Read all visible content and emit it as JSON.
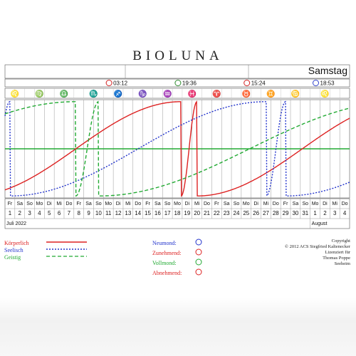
{
  "app_title": "BIOLUNA",
  "weekday": "Samstag",
  "moon_events": [
    {
      "phase": "Abnehmend",
      "time": "03:12",
      "day_index": 11,
      "color": "#d22222"
    },
    {
      "phase": "Neumond",
      "time": "19:36",
      "day_index": 18,
      "color": "#2e8b2e"
    },
    {
      "phase": "Zunehmend",
      "time": "15:24",
      "day_index": 25,
      "color": "#d22222"
    },
    {
      "phase": "Vollmond",
      "time": "18:53",
      "day_index": 32,
      "color": "#3344cc"
    }
  ],
  "zodiac": [
    {
      "glyph": "♌",
      "day_index": 1,
      "color": "#cc2222"
    },
    {
      "glyph": "♍",
      "day_index": 3.5,
      "color": "#2e8b2e"
    },
    {
      "glyph": "♎",
      "day_index": 6,
      "color": "#b8860b"
    },
    {
      "glyph": "♏",
      "day_index": 9,
      "color": "#3344cc"
    },
    {
      "glyph": "♐",
      "day_index": 11.5,
      "color": "#cc2222"
    },
    {
      "glyph": "♑",
      "day_index": 14,
      "color": "#2e8b2e"
    },
    {
      "glyph": "♒",
      "day_index": 16.5,
      "color": "#b8860b"
    },
    {
      "glyph": "♓",
      "day_index": 19,
      "color": "#3344cc"
    },
    {
      "glyph": "♈",
      "day_index": 21.5,
      "color": "#cc2222"
    },
    {
      "glyph": "♉",
      "day_index": 24.5,
      "color": "#2e8b2e"
    },
    {
      "glyph": "♊",
      "day_index": 27,
      "color": "#b8860b"
    },
    {
      "glyph": "♋",
      "day_index": 29.5,
      "color": "#3344cc"
    },
    {
      "glyph": "♌",
      "day_index": 32.5,
      "color": "#cc2222"
    }
  ],
  "months": [
    "Juli 2022",
    "August"
  ],
  "legend": {
    "koerperlich": {
      "label": "Körperlich",
      "color": "#dd2222"
    },
    "seelisch": {
      "label": "Seelisch",
      "color": "#2233cc"
    },
    "geistig": {
      "label": "Geistig",
      "color": "#22aa33"
    }
  },
  "moon_legend": [
    {
      "label": "Neumond:",
      "color": "#2233cc"
    },
    {
      "label": "Zunehmend:",
      "color": "#dd2222"
    },
    {
      "label": "Vollmond:",
      "color": "#22aa33"
    },
    {
      "label": "Abnehmend:",
      "color": "#dd2222"
    }
  ],
  "copyright": [
    "Copyright",
    "© 2012 ACS Siegfried Kaltenecker",
    "Lizenziert für",
    "Thomas Poppe",
    "Seeheim"
  ],
  "chart_data": {
    "type": "line",
    "x": [
      1,
      2,
      3,
      4,
      5,
      6,
      7,
      8,
      9,
      10,
      11,
      12,
      13,
      14,
      15,
      16,
      17,
      18,
      19,
      20,
      21,
      22,
      23,
      24,
      25,
      26,
      27,
      28,
      29,
      30,
      31,
      1,
      2,
      3,
      4
    ],
    "days": [
      "Fr",
      "Sa",
      "So",
      "Mo",
      "Di",
      "Mi",
      "Do",
      "Fr",
      "Sa",
      "So",
      "Mo",
      "Di",
      "Mi",
      "Do",
      "Fr",
      "Sa",
      "So",
      "Mo",
      "Di",
      "Mi",
      "Do",
      "Fr",
      "Sa",
      "So",
      "Mo",
      "Di",
      "Mi",
      "Do",
      "Fr",
      "Sa",
      "So",
      "Mo",
      "Di",
      "Mi",
      "Do"
    ],
    "dates": [
      "1",
      "2",
      "3",
      "4",
      "5",
      "6",
      "7",
      "8",
      "9",
      "10",
      "11",
      "12",
      "13",
      "14",
      "15",
      "16",
      "17",
      "18",
      "19",
      "20",
      "21",
      "22",
      "23",
      "24",
      "25",
      "26",
      "27",
      "28",
      "29",
      "30",
      "31",
      "1",
      "2",
      "3",
      "4"
    ],
    "ylim": [
      -100,
      100
    ],
    "series": [
      {
        "name": "Körperlich",
        "color": "#dd2222",
        "dash": "none",
        "period": 23,
        "phase_day": 19.5
      },
      {
        "name": "Seelisch",
        "color": "#2233cc",
        "dash": "2,2",
        "period": 28,
        "phase_day": 28.5
      },
      {
        "name": "Geistig",
        "color": "#22aa33",
        "dash": "5,3",
        "period": 33,
        "phase_day": 9.5
      }
    ]
  }
}
